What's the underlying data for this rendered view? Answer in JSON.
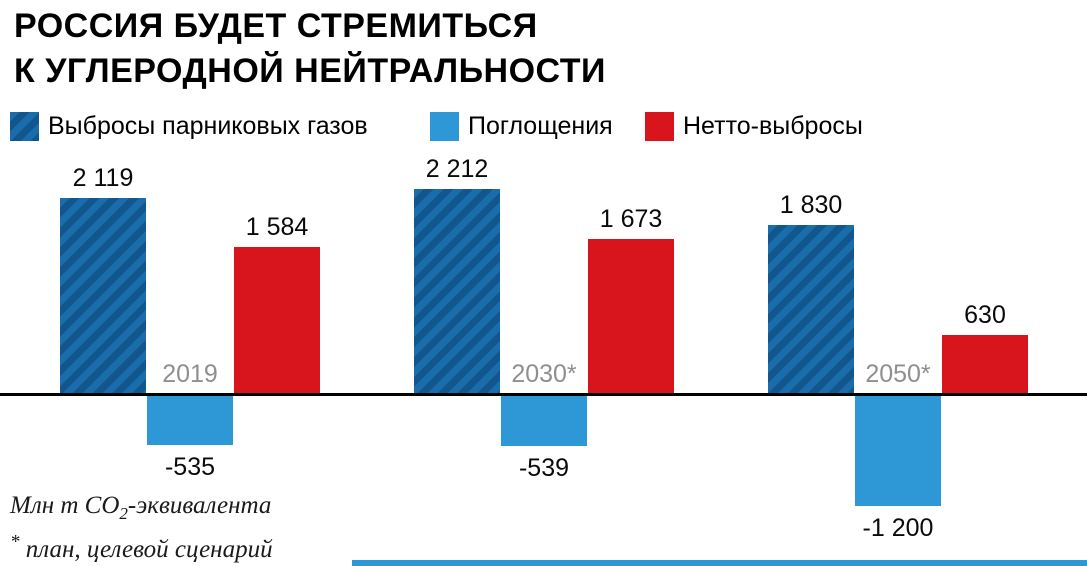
{
  "title": {
    "line1": "РОССИЯ БУДЕТ СТРЕМИТЬСЯ",
    "line2": "К УГЛЕРОДНОЙ НЕЙТРАЛЬНОСТИ"
  },
  "footnote": {
    "unit_prefix": "Млн т CO",
    "unit_sub": "2",
    "unit_suffix": "-эквивалента",
    "note_star": "*",
    "note_text": " план, целевой сценарий"
  },
  "colors": {
    "emissions_base": "#1a6dab",
    "emissions_stripe": "#11568d",
    "absorption": "#2e97d5",
    "net": "#d8151c",
    "year_label": "#8f8f8f",
    "baseline": "#000000",
    "accent_strip": "#2e97d5"
  },
  "chart_data": {
    "type": "bar",
    "title": "РОССИЯ БУДЕТ СТРЕМИТЬСЯ К УГЛЕРОДНОЙ НЕЙТРАЛЬНОСТИ",
    "unit": "Млн т CO2-эквивалента",
    "note": "* план, целевой сценарий",
    "categories": [
      "2019",
      "2030*",
      "2050*"
    ],
    "baseline": 0,
    "ylim": [
      -1300,
      2400
    ],
    "legend_position": "top",
    "grid": false,
    "series": [
      {
        "name": "Выбросы парниковых газов",
        "values": [
          2119,
          2212,
          1830
        ],
        "display": [
          "2 119",
          "2 212",
          "1 830"
        ],
        "color": "#1a6dab",
        "hatch": true,
        "hatch_color": "#11568d"
      },
      {
        "name": "Поглощения",
        "values": [
          -535,
          -539,
          -1200
        ],
        "display": [
          "-535",
          "-539",
          "-1 200"
        ],
        "color": "#2e97d5",
        "hatch": false
      },
      {
        "name": "Нетто-выбросы",
        "values": [
          1584,
          1673,
          630
        ],
        "display": [
          "1 584",
          "1 673",
          "630"
        ],
        "color": "#d8151c",
        "hatch": false
      }
    ]
  }
}
